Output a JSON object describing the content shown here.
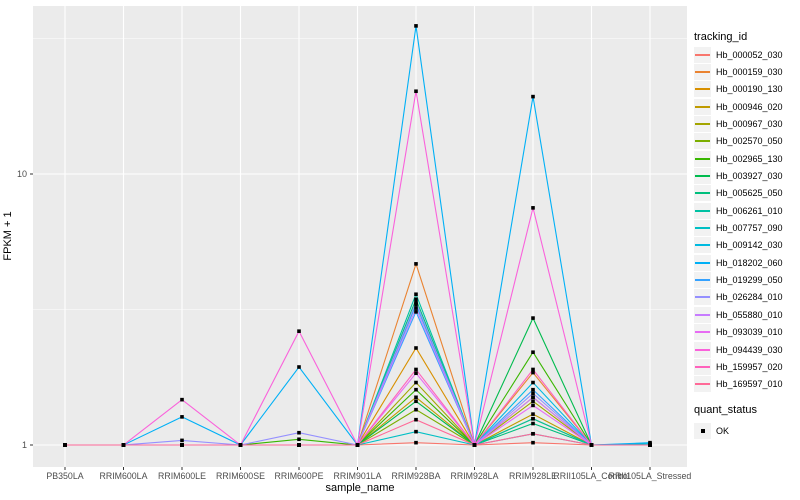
{
  "figure": {
    "background": "#FFFFFF",
    "panel_background": "#EBEBEB",
    "grid_color": "#FFFFFF",
    "tick_label_color": "#4D4D4D",
    "tick_mark_color": "#333333",
    "marker_color": "#000000"
  },
  "chart_data": {
    "type": "line",
    "title": "",
    "xlabel": "sample_name",
    "ylabel": "FPKM + 1",
    "y_scale": "log10",
    "y_ticks": [
      1,
      10
    ],
    "y_minor_ticks": [
      3.162,
      31.62
    ],
    "ylim": [
      0.83,
      41
    ],
    "grid": true,
    "legend_position": "right",
    "legend_title": "tracking_id",
    "point_legend": {
      "title": "quant_status",
      "label": "OK"
    },
    "categories": [
      "PB350LA",
      "RRIM600LA",
      "RRIM600LE",
      "RRIM600SE",
      "RRIM600PE",
      "RRIM901LA",
      "RRIM928BA",
      "RRIM928LA",
      "RRIM928LE",
      "RRII105LA_Control",
      "RRII105LA_Stressed"
    ],
    "series": [
      {
        "name": "Hb_000052_030",
        "color": "#F8766D",
        "values": [
          1,
          1,
          1,
          1,
          1,
          1,
          1.02,
          1,
          1.02,
          1,
          1
        ]
      },
      {
        "name": "Hb_000159_030",
        "color": "#EA8331",
        "values": [
          1,
          1,
          1,
          1,
          1,
          1,
          4.66,
          1,
          1.85,
          1,
          1
        ]
      },
      {
        "name": "Hb_000190_130",
        "color": "#D89000",
        "values": [
          1,
          1,
          1,
          1,
          1,
          1,
          2.28,
          1,
          1.5,
          1,
          1
        ]
      },
      {
        "name": "Hb_000946_020",
        "color": "#C09B00",
        "values": [
          1,
          1,
          1,
          1,
          1,
          1,
          1.5,
          1,
          1.3,
          1,
          1
        ]
      },
      {
        "name": "Hb_000967_030",
        "color": "#A3A500",
        "values": [
          1,
          1,
          1,
          1,
          1,
          1,
          1.7,
          1,
          1.45,
          1,
          1
        ]
      },
      {
        "name": "Hb_002570_050",
        "color": "#7CAE00",
        "values": [
          1,
          1,
          1,
          1,
          1,
          1,
          1.35,
          1,
          1.25,
          1,
          1
        ]
      },
      {
        "name": "Hb_002965_130",
        "color": "#39B600",
        "values": [
          1,
          1,
          1,
          1,
          1.05,
          1,
          1.6,
          1,
          2.2,
          1,
          1
        ]
      },
      {
        "name": "Hb_003927_030",
        "color": "#00BB4E",
        "values": [
          1,
          1,
          1,
          1,
          1,
          1,
          1.45,
          1,
          2.94,
          1,
          1
        ]
      },
      {
        "name": "Hb_005625_050",
        "color": "#00BF7D",
        "values": [
          1,
          1,
          1,
          1,
          1,
          1,
          3.45,
          1,
          1.2,
          1,
          1
        ]
      },
      {
        "name": "Hb_006261_010",
        "color": "#00C1A3",
        "values": [
          1,
          1,
          1,
          1,
          1,
          1,
          3.6,
          1,
          1.25,
          1,
          1
        ]
      },
      {
        "name": "Hb_007757_090",
        "color": "#00BFC4",
        "values": [
          1,
          1,
          1,
          1,
          1,
          1,
          1.12,
          1,
          1.1,
          1,
          1.01
        ]
      },
      {
        "name": "Hb_009142_030",
        "color": "#00BAE0",
        "values": [
          1,
          1,
          1,
          1,
          1,
          1,
          3.3,
          1,
          1.7,
          1,
          1
        ]
      },
      {
        "name": "Hb_018202_060",
        "color": "#00B0F6",
        "values": [
          1,
          1,
          1.27,
          1,
          1.94,
          1,
          35.2,
          1,
          19.3,
          1,
          1.02
        ]
      },
      {
        "name": "Hb_019299_050",
        "color": "#35A2FF",
        "values": [
          1,
          1,
          1,
          1,
          1,
          1,
          3.1,
          1,
          1.6,
          1,
          1
        ]
      },
      {
        "name": "Hb_026284_010",
        "color": "#9590FF",
        "values": [
          1,
          1,
          1.04,
          1,
          1.11,
          1,
          3.35,
          1,
          1.55,
          1,
          1
        ]
      },
      {
        "name": "Hb_055880_010",
        "color": "#C77CFF",
        "values": [
          1,
          1,
          1,
          1,
          1,
          1,
          3.2,
          1,
          1.5,
          1,
          1
        ]
      },
      {
        "name": "Hb_093039_010",
        "color": "#E76BF3",
        "values": [
          1,
          1,
          1,
          1,
          1,
          1,
          1.84,
          1,
          1.4,
          1,
          1
        ]
      },
      {
        "name": "Hb_094439_030",
        "color": "#FA62DB",
        "values": [
          1,
          1,
          1.47,
          1,
          2.63,
          1,
          20.2,
          1,
          7.5,
          1,
          1
        ]
      },
      {
        "name": "Hb_159957_020",
        "color": "#FF62BC",
        "values": [
          1,
          1,
          1,
          1,
          1,
          1,
          1.9,
          1,
          1.9,
          1,
          1
        ]
      },
      {
        "name": "Hb_169597_010",
        "color": "#FF6A98",
        "values": [
          1,
          1,
          1,
          1,
          1,
          1,
          1.24,
          1,
          1.1,
          1,
          1
        ]
      }
    ]
  }
}
